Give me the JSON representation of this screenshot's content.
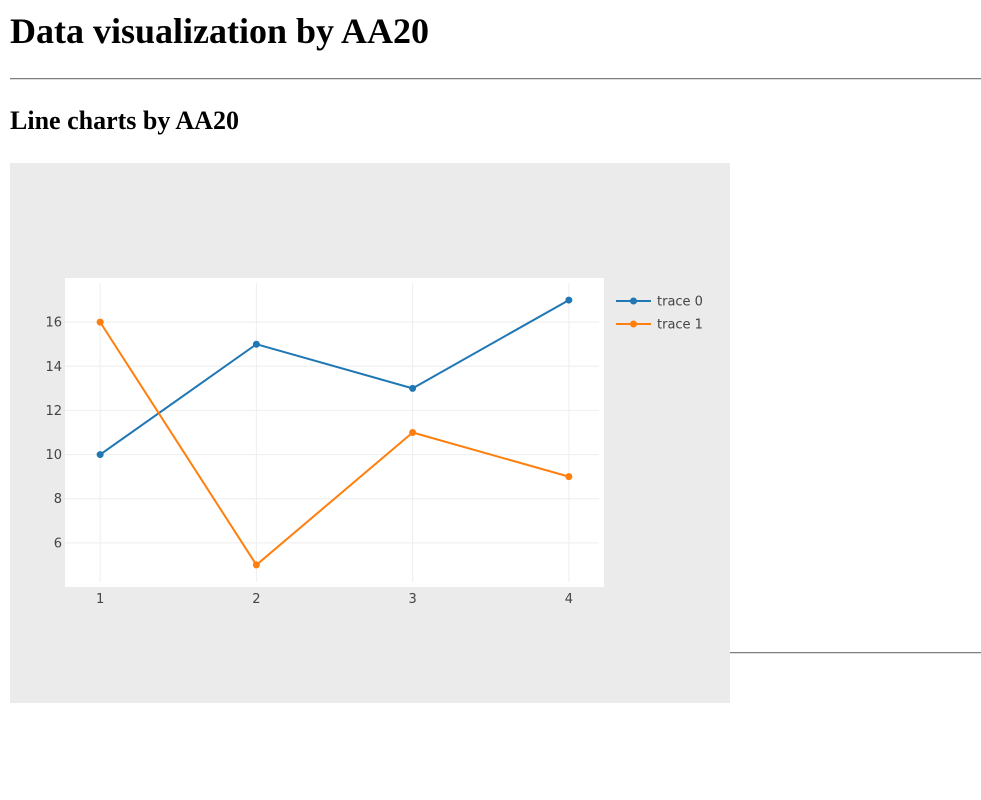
{
  "page": {
    "heading": "Data visualization by AA20",
    "subheading": "Line charts by AA20"
  },
  "colors": {
    "paper_bg": "#ebebeb",
    "plot_bg": "#ffffff",
    "grid": "#eeeeee",
    "tick_text": "#444444",
    "legend_text": "#444444"
  },
  "chart_data": {
    "type": "line",
    "title": "",
    "xlabel": "",
    "ylabel": "",
    "x": [
      1,
      2,
      3,
      4
    ],
    "xlim": [
      0.775,
      4.225
    ],
    "ylim": [
      4.0,
      18.0
    ],
    "xticks": [
      1,
      2,
      3,
      4
    ],
    "yticks": [
      6,
      8,
      10,
      12,
      14,
      16
    ],
    "grid": true,
    "legend_position": "right",
    "markers": true,
    "series": [
      {
        "name": "trace 0",
        "color": "#1f77b4",
        "values": [
          10,
          15,
          13,
          17
        ]
      },
      {
        "name": "trace 1",
        "color": "#ff7f0e",
        "values": [
          16,
          5,
          11,
          9
        ]
      }
    ]
  }
}
